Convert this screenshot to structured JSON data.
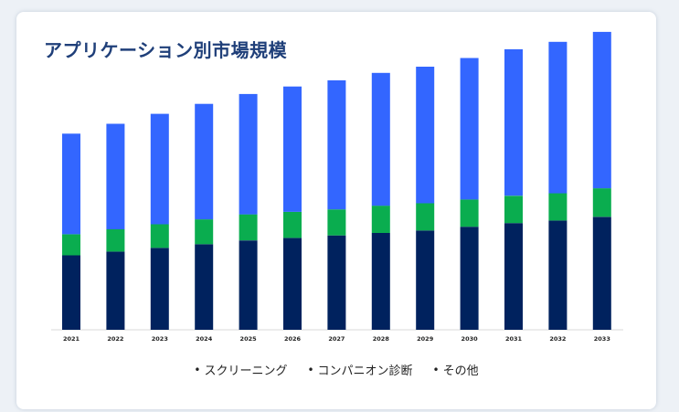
{
  "title": "アプリケーション別市場規模",
  "colors": {
    "screening": "#3366ff",
    "companion": "#0aad4f",
    "other": "#00225e",
    "title": "#1f3f79",
    "axis": "#d8d8d8"
  },
  "legend": {
    "items": [
      {
        "bullet": "•",
        "label": "スクリーニング"
      },
      {
        "bullet": "•",
        "label": "コンパニオン診断"
      },
      {
        "bullet": "•",
        "label": "その他"
      }
    ]
  },
  "chart_data": {
    "type": "bar",
    "stacked": true,
    "categories": [
      "2021",
      "2022",
      "2023",
      "2024",
      "2025",
      "2026",
      "2027",
      "2028",
      "2029",
      "2030",
      "2031",
      "2032",
      "2033"
    ],
    "series": [
      {
        "name": "その他",
        "values": [
          60,
          63,
          66,
          69,
          72,
          74,
          76,
          78,
          80,
          83,
          86,
          88,
          91
        ]
      },
      {
        "name": "コンパニオン診断",
        "values": [
          17,
          18,
          19,
          20,
          21,
          21,
          21,
          22,
          22,
          22,
          22,
          22,
          23
        ]
      },
      {
        "name": "スクリーニング",
        "values": [
          81,
          85,
          89,
          93,
          97,
          101,
          104,
          107,
          110,
          114,
          118,
          122,
          126
        ]
      }
    ],
    "ylim": [
      0,
      240
    ],
    "grid": false,
    "legend_position": "bottom"
  }
}
